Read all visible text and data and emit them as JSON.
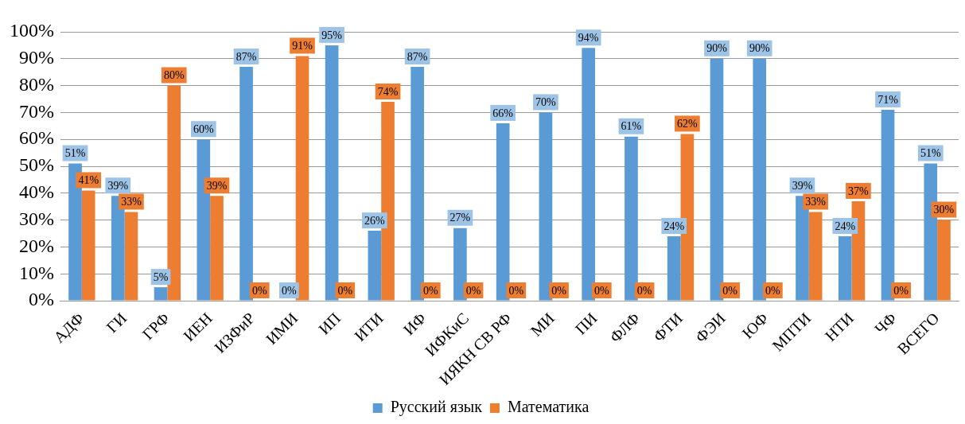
{
  "chart_data": {
    "type": "bar",
    "categories": [
      "АДФ",
      "ГИ",
      "ГРФ",
      "ИЕН",
      "ИЗФиР",
      "ИМИ",
      "ИП",
      "ИТИ",
      "ИФ",
      "ИФКиС",
      "ИЯКН СВ РФ",
      "МИ",
      "ПИ",
      "ФЛФ",
      "ФТИ",
      "ФЭИ",
      "ЮФ",
      "МПТИ",
      "НТИ",
      "ЧФ",
      "ВСЕГО"
    ],
    "series": [
      {
        "name": "Русский язык",
        "color": "#5b9bd5",
        "values": [
          51,
          39,
          5,
          60,
          87,
          0,
          95,
          26,
          87,
          27,
          66,
          70,
          94,
          61,
          24,
          90,
          90,
          39,
          24,
          71,
          51
        ],
        "value_labels": [
          "51%",
          "39%",
          "5%",
          "60%",
          "87%",
          "0%",
          "95%",
          "26%",
          "87%",
          "27%",
          "66%",
          "70%",
          "94%",
          "61%",
          "24%",
          "90%",
          "90%",
          "39%",
          "24%",
          "71%",
          "51%"
        ]
      },
      {
        "name": "Математика",
        "color": "#ed7d31",
        "values": [
          41,
          33,
          80,
          39,
          0,
          91,
          0,
          74,
          0,
          0,
          0,
          0,
          0,
          0,
          62,
          0,
          0,
          33,
          37,
          0,
          30
        ],
        "value_labels": [
          "41%",
          "33%",
          "80%",
          "39%",
          "0%",
          "91%",
          "0%",
          "74%",
          "0%",
          "0%",
          "0%",
          "0%",
          "0%",
          "0%",
          "62%",
          "0%",
          "0%",
          "33%",
          "37%",
          "0%",
          "30%"
        ]
      }
    ],
    "ylim": [
      0,
      100
    ],
    "yticks": [
      {
        "value": 0,
        "label": "0%"
      },
      {
        "value": 10,
        "label": "10%"
      },
      {
        "value": 20,
        "label": "20%"
      },
      {
        "value": 30,
        "label": "30%"
      },
      {
        "value": 40,
        "label": "40%"
      },
      {
        "value": 50,
        "label": "50%"
      },
      {
        "value": 60,
        "label": "60%"
      },
      {
        "value": 70,
        "label": "70%"
      },
      {
        "value": 80,
        "label": "80%"
      },
      {
        "value": 90,
        "label": "90%"
      },
      {
        "value": 100,
        "label": "100%"
      }
    ],
    "grid": "y",
    "legend": "bottom"
  }
}
